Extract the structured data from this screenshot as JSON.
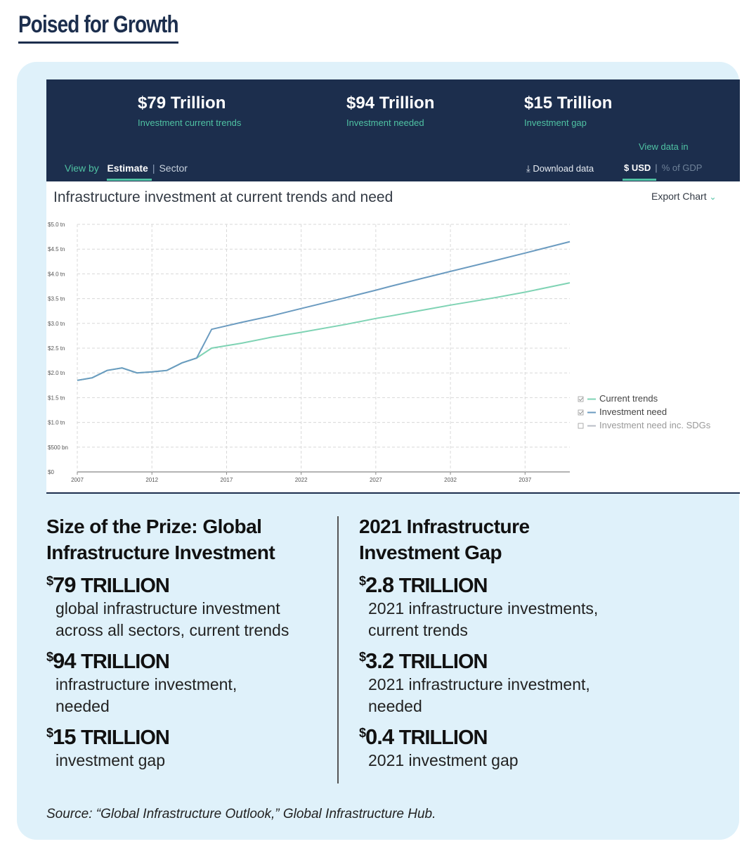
{
  "page_title": "Poised for Growth",
  "dashboard": {
    "kpis": [
      {
        "value": "$79 Trillion",
        "label": "Investment current trends"
      },
      {
        "value": "$94 Trillion",
        "label": "Investment needed"
      },
      {
        "value": "$15 Trillion",
        "label": "Investment gap"
      }
    ],
    "view_by_label": "View by",
    "view_by_options": [
      "Estimate",
      "Sector"
    ],
    "view_by_active": "Estimate",
    "view_data_label": "View data in",
    "download_label": "⤓ Download data",
    "unit_options": [
      "$ USD",
      "% of GDP"
    ],
    "unit_active": "$ USD",
    "chart_title": "Infrastructure investment at current trends and need",
    "export_label": "Export Chart",
    "colors": {
      "header_bg": "#1c2e4d",
      "accent": "#4fc2a3",
      "need_line": "#6b9bc0",
      "trend_line": "#7fd3b4"
    }
  },
  "chart_data": {
    "type": "line",
    "title": "Infrastructure investment at current trends and need",
    "xlabel": "",
    "ylabel": "",
    "x_ticks": [
      "2007",
      "2012",
      "2017",
      "2022",
      "2027",
      "2032",
      "2037"
    ],
    "y_ticks": [
      "$0",
      "$500 bn",
      "$1.0 tn",
      "$1.5 tn",
      "$2.0 tn",
      "$2.5 tn",
      "$3.0 tn",
      "$3.5 tn",
      "$4.0 tn",
      "$4.5 tn",
      "$5.0 tn"
    ],
    "ylim": [
      0,
      5.0
    ],
    "xlim": [
      2007,
      2040
    ],
    "grid": true,
    "legend_position": "right",
    "series": [
      {
        "name": "Current trends",
        "checked": true,
        "color": "#7fd3b4",
        "x": [
          2007,
          2008,
          2009,
          2010,
          2011,
          2012,
          2013,
          2014,
          2015,
          2016,
          2017,
          2018,
          2020,
          2022,
          2025,
          2027,
          2028,
          2030,
          2032,
          2035,
          2037,
          2040
        ],
        "values": [
          1.85,
          1.9,
          2.05,
          2.1,
          2.0,
          2.02,
          2.05,
          2.2,
          2.3,
          2.5,
          2.55,
          2.6,
          2.72,
          2.82,
          2.98,
          3.1,
          3.15,
          3.26,
          3.37,
          3.52,
          3.63,
          3.82
        ]
      },
      {
        "name": "Investment need",
        "checked": true,
        "color": "#6b9bc0",
        "x": [
          2007,
          2008,
          2009,
          2010,
          2011,
          2012,
          2013,
          2014,
          2015,
          2016,
          2017,
          2018,
          2020,
          2022,
          2025,
          2027,
          2028,
          2030,
          2032,
          2035,
          2037,
          2040
        ],
        "values": [
          1.85,
          1.9,
          2.05,
          2.1,
          2.0,
          2.02,
          2.05,
          2.2,
          2.3,
          2.88,
          2.95,
          3.02,
          3.15,
          3.3,
          3.52,
          3.67,
          3.75,
          3.9,
          4.05,
          4.27,
          4.42,
          4.65
        ]
      },
      {
        "name": "Investment need inc. SDGs",
        "checked": false,
        "color": "#b8bec6",
        "x": [],
        "values": []
      }
    ]
  },
  "left_section": {
    "title_line1": "Size of the Prize: Global",
    "title_line2": "Infrastructure Investment",
    "stats": [
      {
        "currency": "$",
        "number": "79",
        "unit": "TRILLION",
        "desc_line1": "global infrastructure investment",
        "desc_line2": "across all sectors, current trends"
      },
      {
        "currency": "$",
        "number": "94",
        "unit": "TRILLION",
        "desc_line1": "infrastructure investment,",
        "desc_line2": "needed"
      },
      {
        "currency": "$",
        "number": "15",
        "unit": "TRILLION",
        "desc_line1": "investment gap",
        "desc_line2": ""
      }
    ]
  },
  "right_section": {
    "title_line1": "2021 Infrastructure",
    "title_line2": "Investment Gap",
    "stats": [
      {
        "currency": "$",
        "number": "2.8",
        "unit": "TRILLION",
        "desc_line1": "2021 infrastructure investments,",
        "desc_line2": "current trends"
      },
      {
        "currency": "$",
        "number": "3.2",
        "unit": "TRILLION",
        "desc_line1": "2021 infrastructure investment,",
        "desc_line2": "needed"
      },
      {
        "currency": "$",
        "number": "0.4",
        "unit": "TRILLION",
        "desc_line1": "2021 investment gap",
        "desc_line2": ""
      }
    ]
  },
  "source": "Source: “Global Infrastructure Outlook,” Global Infrastructure Hub."
}
